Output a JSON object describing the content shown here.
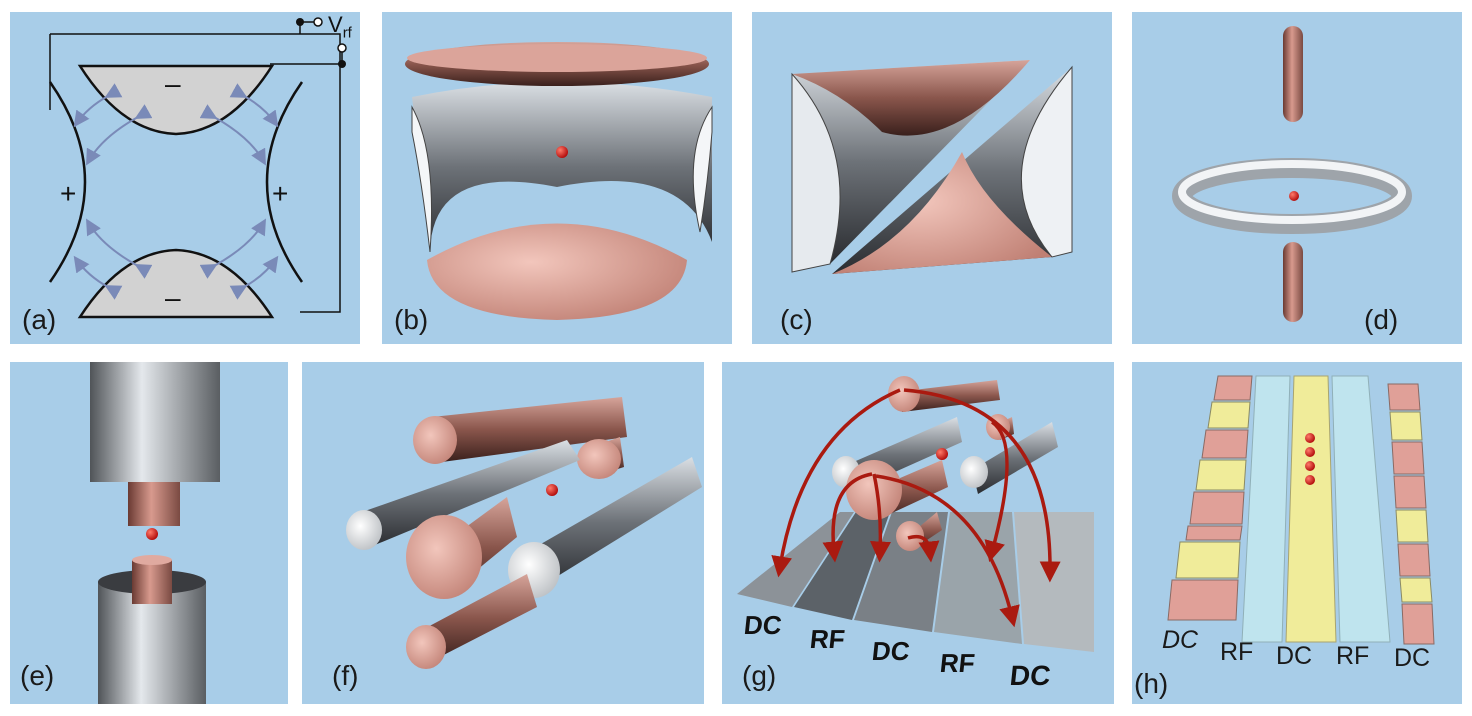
{
  "figure": {
    "panels": [
      {
        "id": "a",
        "label": "(a)"
      },
      {
        "id": "b",
        "label": "(b)"
      },
      {
        "id": "c",
        "label": "(c)"
      },
      {
        "id": "d",
        "label": "(d)"
      },
      {
        "id": "e",
        "label": "(e)"
      },
      {
        "id": "f",
        "label": "(f)"
      },
      {
        "id": "g",
        "label": "(g)"
      },
      {
        "id": "h",
        "label": "(h)"
      }
    ]
  },
  "panel_a": {
    "voltage_label": "Vrf",
    "voltage_main": "V",
    "voltage_sub": "rf",
    "minus_sign": "–",
    "plus_sign": "+"
  },
  "panel_g": {
    "electrode_labels": [
      "DC",
      "RF",
      "DC",
      "RF",
      "DC"
    ]
  },
  "panel_h": {
    "electrode_labels": [
      "DC",
      "RF",
      "DC",
      "RF",
      "DC"
    ]
  },
  "colors": {
    "background": "#a8cde8",
    "copper": "#c98b80",
    "steel": "#8a9096",
    "ion": "#cc1010",
    "field_arrow": "#7a8ab8",
    "dc_pad_pink": "#e0a098",
    "dc_pad_yellow": "#f0ec9a",
    "rf_strip": "#bfe4ee",
    "arrow_red": "#aa1a10"
  }
}
